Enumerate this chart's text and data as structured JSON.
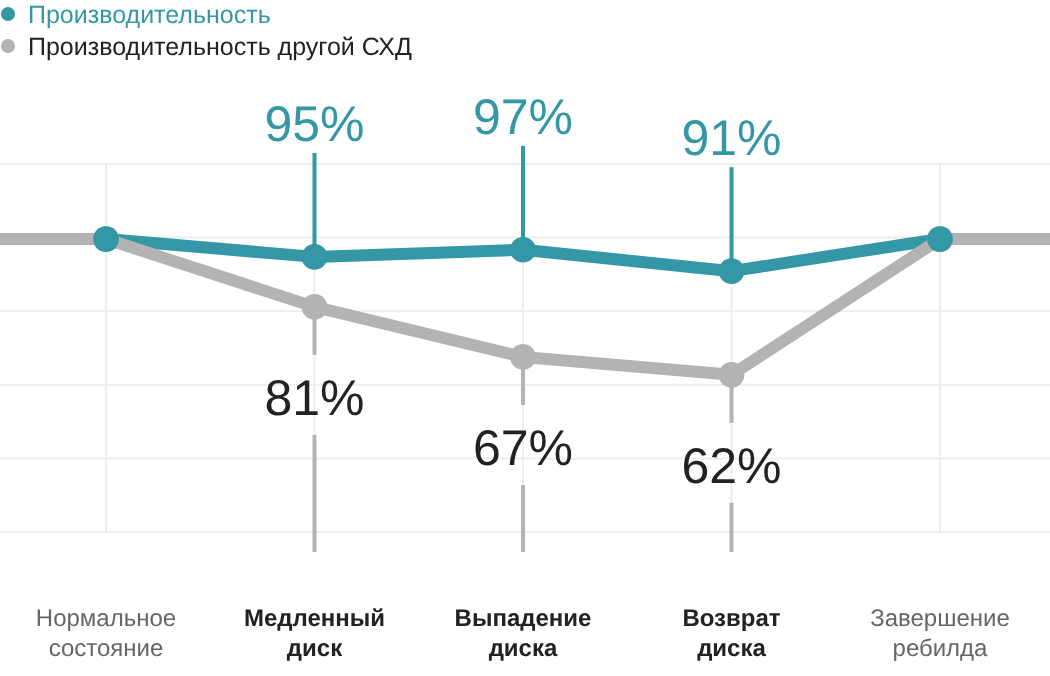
{
  "chart_data": {
    "type": "line",
    "categories": [
      "Нормальное состояние",
      "Медленный диск",
      "Выпадение диска",
      "Возврат диска",
      "Завершение ребилда"
    ],
    "series": [
      {
        "name": "Производительность",
        "color": "#3397a5",
        "values": [
          100,
          95,
          97,
          91,
          100
        ],
        "value_labels": [
          null,
          "95%",
          "97%",
          "91%",
          null
        ]
      },
      {
        "name": "Производительность другой СХД",
        "color": "#b3b3b3",
        "values": [
          100,
          81,
          67,
          62,
          100
        ],
        "value_labels": [
          null,
          "81%",
          "67%",
          "62%",
          null
        ]
      }
    ],
    "ylim": [
      18,
      121
    ],
    "grid": true,
    "legend": "top left",
    "marker": "circle",
    "line_style": "solid"
  }
}
